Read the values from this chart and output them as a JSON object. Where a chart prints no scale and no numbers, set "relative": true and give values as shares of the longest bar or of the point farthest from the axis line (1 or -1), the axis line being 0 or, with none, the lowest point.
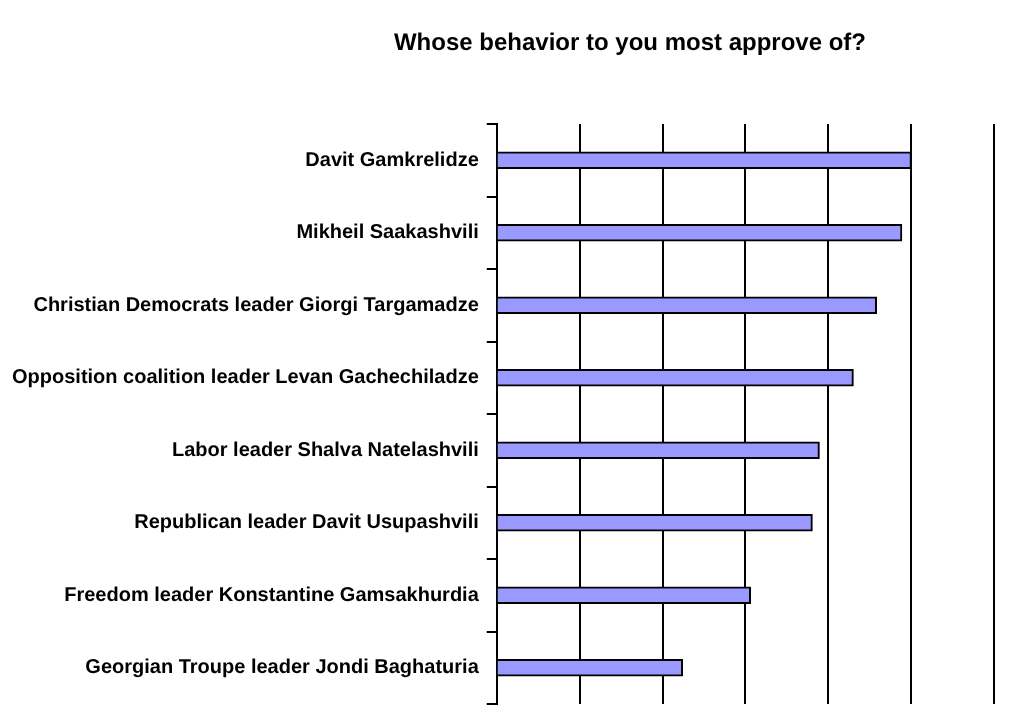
{
  "chart_data": {
    "type": "bar",
    "orientation": "horizontal",
    "relative": true,
    "title": "Whose behavior to you most approve of?",
    "categories": [
      "Davit Gamkrelidze",
      "Mikheil Saakashvili",
      "Christian Democrats leader Giorgi Targamadze",
      "Opposition coalition leader Levan Gachechiladze",
      "Labor leader Shalva Natelashvili",
      "Republican leader Davit Usupashvili",
      "Freedom leader Konstantine Gamsakhurdia",
      "Georgian Troupe leader Jondi Baghaturia"
    ],
    "values": [
      1,
      0.977,
      0.916,
      0.86,
      0.778,
      0.761,
      0.612,
      0.448
    ],
    "color": "#9999ff",
    "grid": "x",
    "legend": false
  }
}
